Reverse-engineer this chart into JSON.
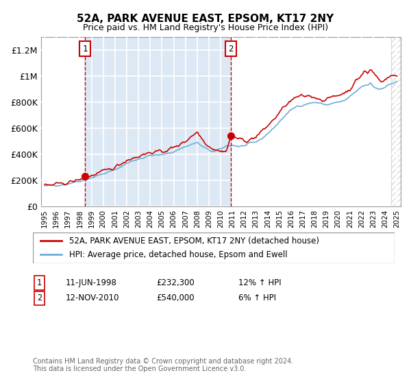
{
  "title": "52A, PARK AVENUE EAST, EPSOM, KT17 2NY",
  "subtitle": "Price paid vs. HM Land Registry's House Price Index (HPI)",
  "xlabel": "",
  "ylabel": "",
  "ylim": [
    0,
    1300000
  ],
  "yticks": [
    0,
    200000,
    400000,
    600000,
    800000,
    1000000,
    1200000
  ],
  "ytick_labels": [
    "£0",
    "£200K",
    "£400K",
    "£600K",
    "£800K",
    "£1M",
    "£1.2M"
  ],
  "hpi_color": "#6baed6",
  "price_color": "#cc0000",
  "dot_color": "#cc0000",
  "bg_color": "#dce9f5",
  "hatch_color": "#b0b0b0",
  "grid_color": "#ffffff",
  "purchase1_x": 1998.44,
  "purchase1_y": 232300,
  "purchase2_x": 2010.86,
  "purchase2_y": 540000,
  "purchase1_label": "1",
  "purchase2_label": "2",
  "purchase1_date": "11-JUN-1998",
  "purchase1_price": "£232,300",
  "purchase1_hpi": "12% ↑ HPI",
  "purchase2_date": "12-NOV-2010",
  "purchase2_price": "£540,000",
  "purchase2_hpi": "6% ↑ HPI",
  "legend_line1": "52A, PARK AVENUE EAST, EPSOM, KT17 2NY (detached house)",
  "legend_line2": "HPI: Average price, detached house, Epsom and Ewell",
  "footer": "Contains HM Land Registry data © Crown copyright and database right 2024.\nThis data is licensed under the Open Government Licence v3.0.",
  "xmin": 1995,
  "xmax": 2025,
  "shaded_start": 1998.44,
  "shaded_end": 2010.86,
  "hatch_start": 2024.5
}
